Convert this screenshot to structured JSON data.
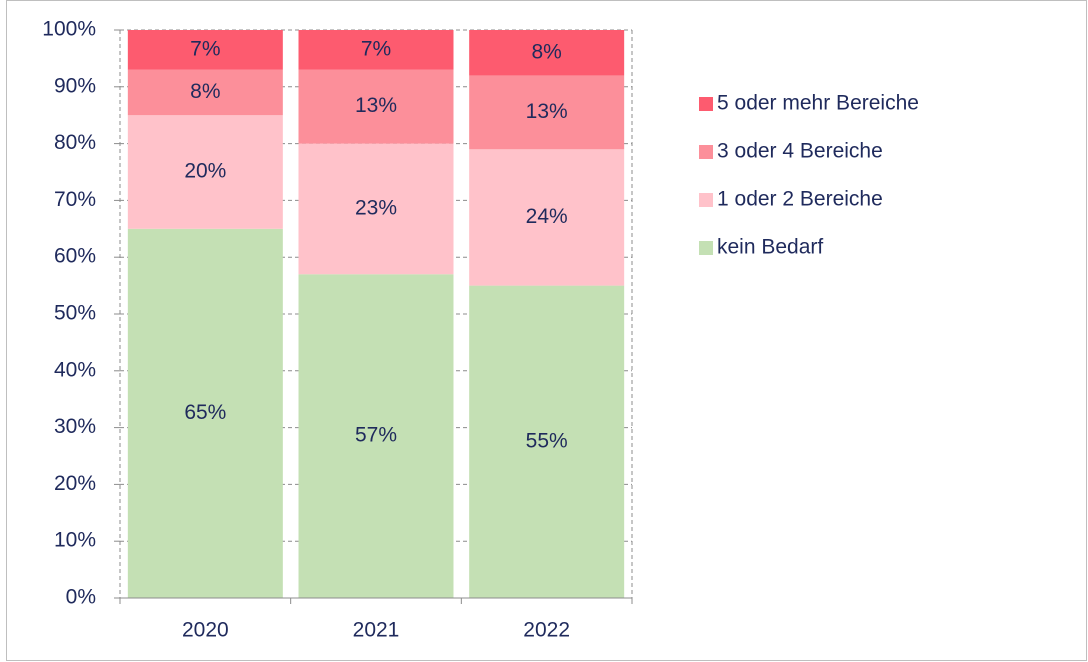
{
  "chart_data": {
    "type": "stacked_bar",
    "categories": [
      "2020",
      "2021",
      "2022"
    ],
    "series": [
      {
        "name": "kein Bedarf",
        "color": "#c4e0b4",
        "values": [
          65,
          57,
          55
        ],
        "value_labels": [
          "65%",
          "57%",
          "55%"
        ]
      },
      {
        "name": "1 oder 2 Bereiche",
        "color": "#ffc2ca",
        "values": [
          20,
          23,
          24
        ],
        "value_labels": [
          "20%",
          "23%",
          "24%"
        ]
      },
      {
        "name": "3 oder 4 Bereiche",
        "color": "#fc8f9a",
        "values": [
          8,
          13,
          13
        ],
        "value_labels": [
          "8%",
          "13%",
          "13%"
        ]
      },
      {
        "name": "5 oder mehr Bereiche",
        "color": "#fd5b6f",
        "values": [
          7,
          7,
          8
        ],
        "value_labels": [
          "7%",
          "7%",
          "8%"
        ]
      }
    ],
    "ylim": [
      0,
      100
    ],
    "yticks": [
      {
        "value": 0,
        "label": "0%"
      },
      {
        "value": 10,
        "label": "10%"
      },
      {
        "value": 20,
        "label": "20%"
      },
      {
        "value": 30,
        "label": "30%"
      },
      {
        "value": 40,
        "label": "40%"
      },
      {
        "value": 50,
        "label": "50%"
      },
      {
        "value": 60,
        "label": "60%"
      },
      {
        "value": 70,
        "label": "70%"
      },
      {
        "value": 80,
        "label": "80%"
      },
      {
        "value": 90,
        "label": "90%"
      },
      {
        "value": 100,
        "label": "100%"
      }
    ],
    "grid": true,
    "legend": "right"
  }
}
